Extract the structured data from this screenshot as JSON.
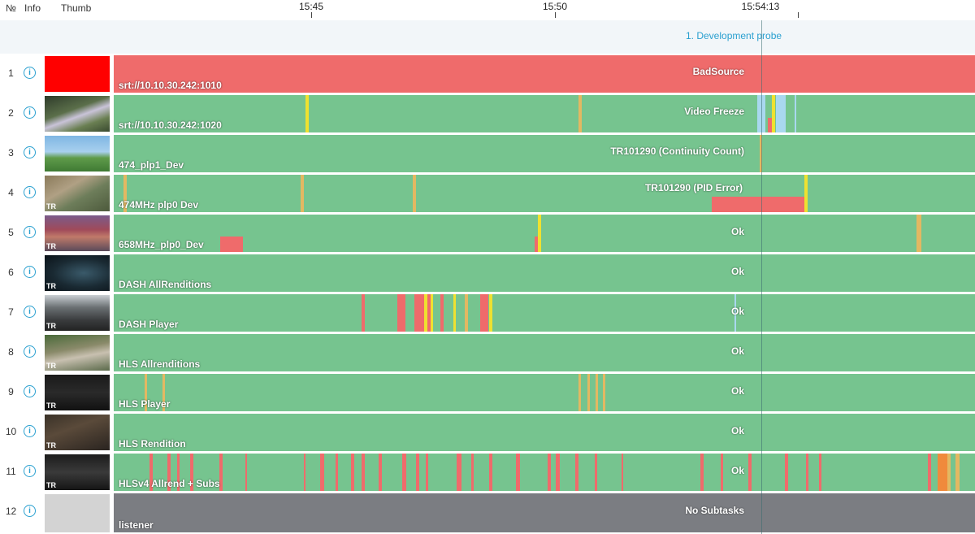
{
  "header": {
    "col_num": "№",
    "col_info": "Info",
    "col_thumb": "Thumb"
  },
  "timeline": {
    "ticks": [
      "15:45",
      "15:50",
      "15:54:13"
    ]
  },
  "probe": {
    "label": "1. Development probe"
  },
  "colors": {
    "ok": "#76c48f",
    "bad": "#ef6b6b",
    "warn": "#e3b862",
    "yellow": "#efe130",
    "blue": "#a9d8ef",
    "orange": "#f08a3c",
    "gray": "#7b7d82",
    "accent": "#2aa0d0"
  },
  "rows": [
    {
      "num": "1",
      "source": "srt://10.10.30.242:1010",
      "status": "BadSource"
    },
    {
      "num": "2",
      "source": "srt://10.10.30.242:1020",
      "status": "Video Freeze"
    },
    {
      "num": "3",
      "source": "474_plp1_Dev",
      "status": "TR101290 (Continuity Count)"
    },
    {
      "num": "4",
      "source": "474MHz plp0 Dev",
      "status": "TR101290 (PID Error)",
      "badge": "TR"
    },
    {
      "num": "5",
      "source": "658MHz_plp0_Dev",
      "status": "Ok",
      "badge": "TR"
    },
    {
      "num": "6",
      "source": "DASH AllRenditions",
      "status": "Ok",
      "badge": "TR"
    },
    {
      "num": "7",
      "source": "DASH Player",
      "status": "Ok",
      "badge": "TR"
    },
    {
      "num": "8",
      "source": "HLS Allrenditions",
      "status": "Ok",
      "badge": "TR"
    },
    {
      "num": "9",
      "source": "HLS Player",
      "status": "Ok",
      "badge": "TR"
    },
    {
      "num": "10",
      "source": "HLS Rendition",
      "status": "Ok",
      "badge": "TR"
    },
    {
      "num": "11",
      "source": "HLSv4 Allrend + Subs",
      "status": "Ok",
      "badge": "TR"
    },
    {
      "num": "12",
      "source": "listener",
      "status": "No Subtasks"
    }
  ]
}
